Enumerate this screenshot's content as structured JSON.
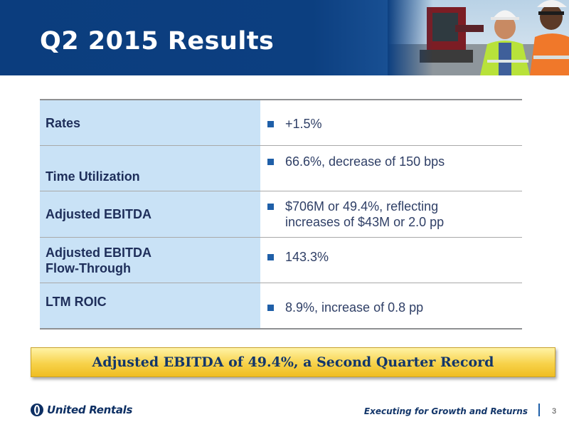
{
  "slide": {
    "title": "Q2 2015 Results",
    "page_number": "3",
    "brand": "United Rentals",
    "tagline": "Executing for Growth and Returns"
  },
  "table": {
    "rows": [
      {
        "label": "Rates",
        "value": "+1.5%"
      },
      {
        "label": "Time Utilization",
        "value": "66.6%, decrease of 150 bps"
      },
      {
        "label": "Adjusted EBITDA",
        "value": "$706M or 49.4%, reflecting\nincreases of $43M or 2.0 pp"
      },
      {
        "label": "Adjusted EBITDA\nFlow-Through",
        "value": "143.3%"
      },
      {
        "label": "LTM ROIC",
        "value": "8.9%, increase of 0.8 pp"
      }
    ]
  },
  "callout": {
    "text": "Adjusted EBITDA of 49.4%, a Second Quarter Record"
  },
  "colors": {
    "header_blue": "#0c3f80",
    "label_cell_bg": "#c9e2f6",
    "bullet_blue": "#1f5fa8",
    "callout_gold": "#f7d24a",
    "text_navy": "#13366a"
  },
  "icons": {
    "header_photo": "construction-workers-photo",
    "logo": "united-rentals-logo-icon",
    "bullet": "square-bullet-icon"
  }
}
